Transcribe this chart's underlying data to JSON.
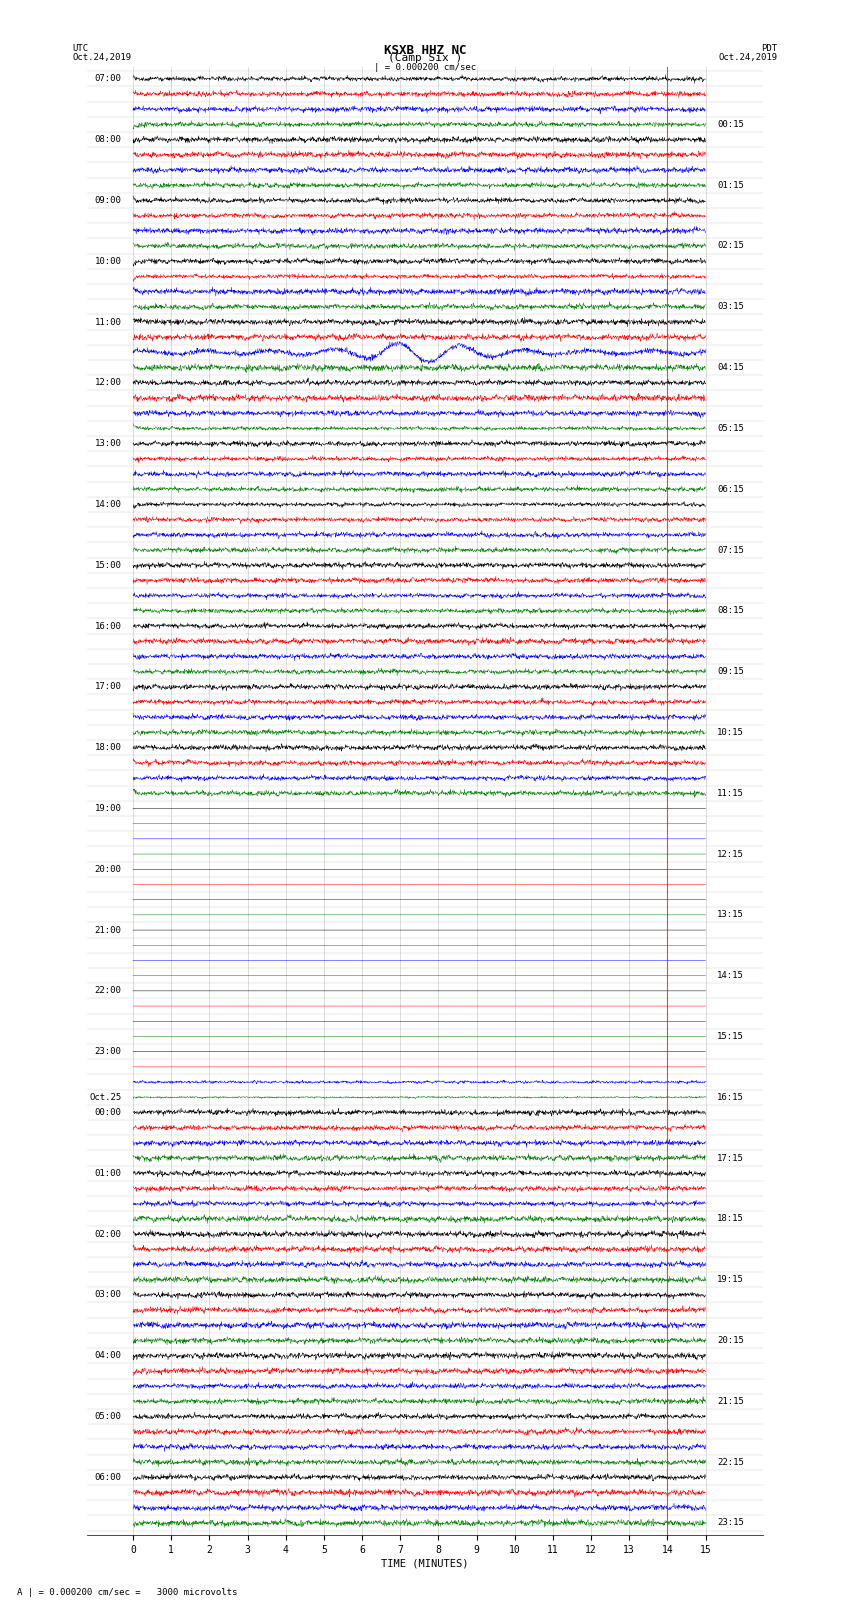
{
  "title_line1": "KSXB HHZ NC",
  "title_line2": "(Camp Six )",
  "scale_text": "| = 0.000200 cm/sec",
  "bottom_text": "A | = 0.000200 cm/sec =   3000 microvolts",
  "left_label_top": "UTC",
  "left_label_date": "Oct.24,2019",
  "right_label_top": "PDT",
  "right_label_date": "Oct.24,2019",
  "xlabel": "TIME (MINUTES)",
  "xmin": 0,
  "xmax": 15,
  "background": "#ffffff",
  "trace_colors": [
    "black",
    "red",
    "blue",
    "green"
  ],
  "utc_labels": [
    [
      "07:00",
      0
    ],
    [
      "08:00",
      4
    ],
    [
      "09:00",
      8
    ],
    [
      "10:00",
      12
    ],
    [
      "11:00",
      16
    ],
    [
      "12:00",
      20
    ],
    [
      "13:00",
      24
    ],
    [
      "14:00",
      28
    ],
    [
      "15:00",
      32
    ],
    [
      "16:00",
      36
    ],
    [
      "17:00",
      40
    ],
    [
      "18:00",
      44
    ],
    [
      "19:00",
      48
    ],
    [
      "20:00",
      52
    ],
    [
      "21:00",
      56
    ],
    [
      "22:00",
      60
    ],
    [
      "23:00",
      64
    ],
    [
      "Oct.25",
      67
    ],
    [
      "00:00",
      68
    ],
    [
      "01:00",
      72
    ],
    [
      "02:00",
      76
    ],
    [
      "03:00",
      80
    ],
    [
      "04:00",
      84
    ],
    [
      "05:00",
      88
    ],
    [
      "06:00",
      92
    ]
  ],
  "pdt_labels": [
    [
      "00:15",
      3
    ],
    [
      "01:15",
      7
    ],
    [
      "02:15",
      11
    ],
    [
      "03:15",
      15
    ],
    [
      "04:15",
      19
    ],
    [
      "05:15",
      23
    ],
    [
      "06:15",
      27
    ],
    [
      "07:15",
      31
    ],
    [
      "08:15",
      35
    ],
    [
      "09:15",
      39
    ],
    [
      "10:15",
      43
    ],
    [
      "11:15",
      47
    ],
    [
      "12:15",
      51
    ],
    [
      "13:15",
      55
    ],
    [
      "14:15",
      59
    ],
    [
      "15:15",
      63
    ],
    [
      "16:15",
      67
    ],
    [
      "17:15",
      71
    ],
    [
      "18:15",
      75
    ],
    [
      "19:15",
      79
    ],
    [
      "20:15",
      83
    ],
    [
      "21:15",
      87
    ],
    [
      "22:15",
      91
    ],
    [
      "23:15",
      95
    ]
  ],
  "n_rows": 96,
  "xticks": [
    0,
    1,
    2,
    3,
    4,
    5,
    6,
    7,
    8,
    9,
    10,
    11,
    12,
    13,
    14,
    15
  ],
  "grid_color": "#999999",
  "font_size_title": 9,
  "font_size_labels": 6.5,
  "font_size_ticks": 7
}
